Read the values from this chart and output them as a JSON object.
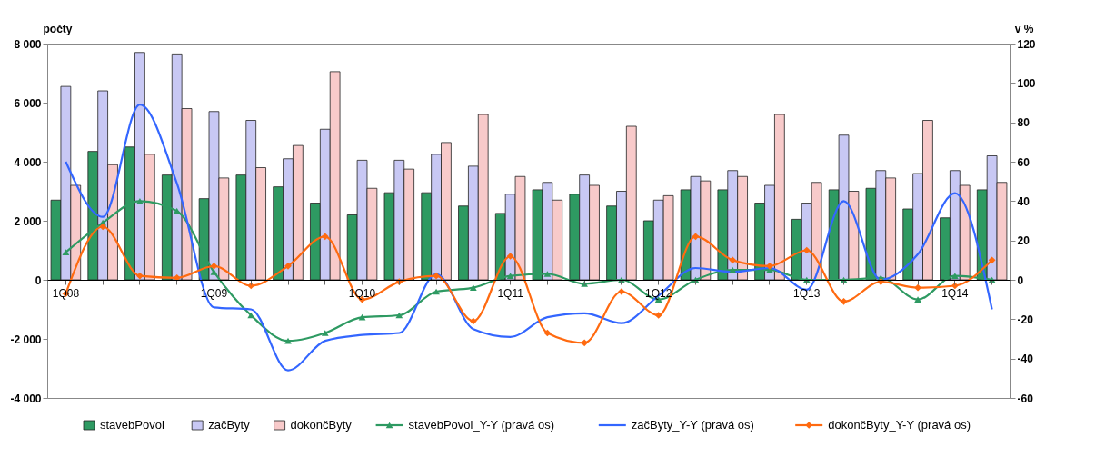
{
  "chart_data": {
    "type": "bar",
    "ylabel": "počty",
    "y2label": "v %",
    "categories": [
      "1Q08",
      null,
      null,
      null,
      "1Q09",
      null,
      null,
      null,
      "1Q10",
      null,
      null,
      null,
      "1Q11",
      null,
      null,
      null,
      "1Q12",
      null,
      null,
      null,
      "1Q13",
      null,
      null,
      null,
      "1Q14",
      null
    ],
    "ylim": [
      -4000,
      8000
    ],
    "yticks": [
      {
        "value": -4000,
        "label": "-4 000"
      },
      {
        "value": -2000,
        "label": "-2 000"
      },
      0,
      {
        "value": 2000,
        "label": "2 000"
      },
      {
        "value": 4000,
        "label": "4 000"
      },
      {
        "value": 6000,
        "label": "6 000"
      },
      {
        "value": 8000,
        "label": "8 000"
      }
    ],
    "y2lim": [
      -60,
      120
    ],
    "y2ticks": [
      -60,
      -40,
      -20,
      0,
      20,
      40,
      60,
      80,
      100,
      120
    ],
    "grid": false,
    "legend": "bottom",
    "line_style": "solid",
    "series": [
      {
        "name": "stavebPovol",
        "color": "#2e9a62",
        "values": [
          2700,
          4350,
          4500,
          3550,
          2750,
          3550,
          3150,
          2600,
          2200,
          2950,
          2950,
          2500,
          2250,
          3050,
          2900,
          2500,
          2000,
          3050,
          3050,
          2600,
          2050,
          3050,
          3100,
          2400,
          2100,
          3050
        ]
      },
      {
        "name": "začByty",
        "color": "#c8c8f4",
        "values": [
          6550,
          6400,
          7700,
          7650,
          5700,
          5400,
          4100,
          5100,
          4050,
          4050,
          4250,
          3850,
          2900,
          3300,
          3550,
          3000,
          2700,
          3500,
          3700,
          3200,
          2600,
          4900,
          3700,
          3600,
          3700,
          4200
        ]
      },
      {
        "name": "dokončByty",
        "color": "#f8caca",
        "values": [
          3200,
          3900,
          4250,
          5800,
          3450,
          3800,
          4550,
          7050,
          3100,
          3750,
          4650,
          5600,
          3500,
          2700,
          3200,
          5200,
          2850,
          3350,
          3500,
          5600,
          3300,
          3000,
          3450,
          5400,
          3200,
          3300
        ]
      },
      {
        "name": "stavebPovol_Y-Y (pravá os)",
        "type": "line",
        "axis": "y2",
        "marker": "triangle",
        "color": "#2e9a62",
        "values": [
          14,
          29,
          40,
          35,
          4,
          -18,
          -31,
          -27,
          -19,
          -18,
          -6,
          -4,
          2,
          3,
          -2,
          0,
          -10,
          0,
          5,
          5,
          0,
          0,
          1,
          -10,
          2,
          0
        ]
      },
      {
        "name": "začByty_Y-Y (pravá os)",
        "type": "line",
        "axis": "y2",
        "marker": "none",
        "color": "#3366ff",
        "values": [
          60,
          32,
          89,
          49,
          -14,
          -15,
          -46,
          -31,
          -28,
          -27,
          3,
          -25,
          -29,
          -19,
          -17,
          -22,
          -8,
          6,
          4,
          6,
          -5,
          40,
          0,
          13,
          44,
          -15
        ]
      },
      {
        "name": "dokončByty_Y-Y (pravá os)",
        "type": "line",
        "axis": "y2",
        "marker": "diamond",
        "color": "#ff6a10",
        "values": [
          -7,
          27,
          2,
          1,
          7,
          -3,
          7,
          22,
          -10,
          -1,
          2,
          -21,
          12,
          -27,
          -32,
          -6,
          -18,
          22,
          10,
          7,
          15,
          -11,
          -1,
          -4,
          -3,
          10
        ]
      }
    ]
  }
}
